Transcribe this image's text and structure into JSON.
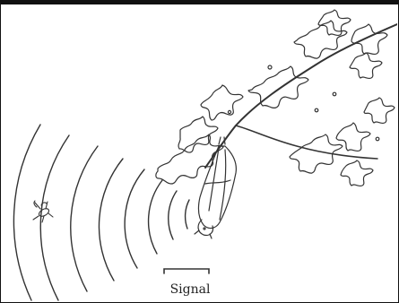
{
  "figure": {
    "signal_label": "Signal",
    "icons": [
      "tree-branch-icon",
      "bat-icon",
      "insect-icon",
      "sound-wave-icon"
    ],
    "line_color": "#333333",
    "background_color": "#ffffff"
  }
}
